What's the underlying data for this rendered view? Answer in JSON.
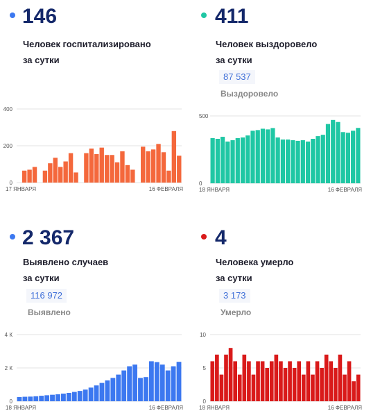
{
  "panels": [
    {
      "big": "146",
      "line1": "Человек госпитализировано",
      "line2": "за сутки",
      "total": "",
      "sub": "",
      "color": "#3c78f0"
    },
    {
      "big": "411",
      "line1": "Человек выздоровело",
      "line2": "за сутки",
      "total": "87 537",
      "sub": "Выздоровело",
      "color": "#1fc7a4"
    },
    {
      "big": "2 367",
      "line1": "Выявлено случаев",
      "line2": "за сутки",
      "total": "116 972",
      "sub": "Выявлено",
      "color": "#3c78f0"
    },
    {
      "big": "4",
      "line1": "Человека умерло",
      "line2": "за сутки",
      "total": "3 173",
      "sub": "Умерло",
      "color": "#d91a1a"
    }
  ],
  "chart_data": [
    {
      "type": "bar",
      "color": "#f4683c",
      "x_start_label": "17 ЯНВАРЯ",
      "x_end_label": "16 ФЕВРАЛЯ",
      "ylim": [
        0,
        400
      ],
      "y_ticks": [
        0,
        200,
        400
      ],
      "y_tick_labels": [
        "0",
        "200",
        "400"
      ],
      "values": [
        0,
        65,
        70,
        85,
        0,
        65,
        105,
        135,
        85,
        115,
        160,
        55,
        0,
        160,
        185,
        155,
        190,
        150,
        150,
        110,
        170,
        95,
        70,
        0,
        195,
        170,
        180,
        210,
        165,
        65,
        280,
        146
      ]
    },
    {
      "type": "bar",
      "color": "#1fc7a4",
      "x_start_label": "18 ЯНВАРЯ",
      "x_end_label": "16 ФЕВРАЛЯ",
      "ylim": [
        0,
        500
      ],
      "y_ticks": [
        0,
        500
      ],
      "y_tick_labels": [
        "0",
        "500"
      ],
      "values": [
        335,
        330,
        345,
        310,
        320,
        335,
        340,
        355,
        390,
        395,
        405,
        400,
        410,
        340,
        325,
        325,
        320,
        315,
        320,
        310,
        330,
        350,
        360,
        440,
        470,
        455,
        380,
        375,
        390,
        411
      ]
    },
    {
      "type": "bar",
      "color": "#3c78f0",
      "x_start_label": "18 ЯНВАРЯ",
      "x_end_label": "16 ФЕВРАЛЯ",
      "ylim": [
        0,
        4000
      ],
      "y_ticks": [
        0,
        2000,
        4000
      ],
      "y_tick_labels": [
        "0",
        "2 К",
        "4 К"
      ],
      "values": [
        250,
        270,
        280,
        300,
        330,
        360,
        390,
        420,
        460,
        500,
        560,
        620,
        700,
        820,
        950,
        1100,
        1250,
        1400,
        1600,
        1850,
        2100,
        2200,
        1400,
        1450,
        2400,
        2350,
        2200,
        1850,
        2100,
        2367
      ]
    },
    {
      "type": "bar",
      "color": "#d91a1a",
      "x_start_label": "18 ЯНВАРЯ",
      "x_end_label": "16 ФЕВРАЛЯ",
      "ylim": [
        0,
        10
      ],
      "y_ticks": [
        0,
        5,
        10
      ],
      "y_tick_labels": [
        "0",
        "5",
        "10"
      ],
      "values": [
        6,
        7,
        4,
        7,
        8,
        6,
        4,
        7,
        6,
        4,
        6,
        6,
        5,
        6,
        7,
        6,
        5,
        6,
        5,
        6,
        4,
        6,
        4,
        6,
        5,
        7,
        6,
        5,
        7,
        4,
        6,
        3,
        4
      ]
    }
  ]
}
